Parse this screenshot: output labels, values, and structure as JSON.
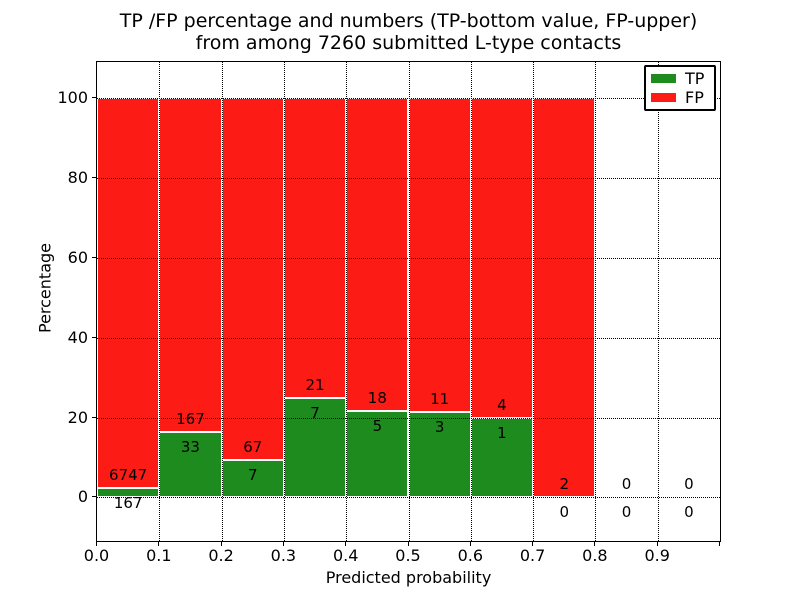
{
  "chart_data": {
    "type": "bar",
    "stacked": true,
    "title_line1": "TP /FP percentage and numbers (TP-bottom value, FP-upper)",
    "title_line2": "from among 7260 submitted L-type contacts",
    "xlabel": "Predicted probability",
    "ylabel": "Percentage",
    "total_contacts": 7260,
    "xlim": [
      0.0,
      1.0
    ],
    "ylim": [
      -10.9,
      109.1
    ],
    "grid": "dotted",
    "x_tick_labels": [
      "0.0",
      "0.1",
      "0.2",
      "0.3",
      "0.4",
      "0.5",
      "0.6",
      "0.7",
      "0.8",
      "0.9"
    ],
    "y_tick_values": [
      0,
      20,
      40,
      60,
      80,
      100
    ],
    "bin_width": 0.1,
    "annotation_rule": "FP count printed above green bar top, TP count printed below green bar top",
    "legend": {
      "position": "upper right",
      "entries": [
        {
          "name": "TP",
          "color": "#1e8b1e"
        },
        {
          "name": "FP",
          "color": "#fd1b15"
        }
      ]
    },
    "bins": [
      {
        "x_start": 0.0,
        "x_end": 0.1,
        "tp": 167,
        "fp": 6747,
        "tp_pct": 2.42,
        "fp_pct": 97.58
      },
      {
        "x_start": 0.1,
        "x_end": 0.2,
        "tp": 33,
        "fp": 167,
        "tp_pct": 16.5,
        "fp_pct": 83.5
      },
      {
        "x_start": 0.2,
        "x_end": 0.3,
        "tp": 7,
        "fp": 67,
        "tp_pct": 9.46,
        "fp_pct": 90.54
      },
      {
        "x_start": 0.3,
        "x_end": 0.4,
        "tp": 7,
        "fp": 21,
        "tp_pct": 25.0,
        "fp_pct": 75.0
      },
      {
        "x_start": 0.4,
        "x_end": 0.5,
        "tp": 5,
        "fp": 18,
        "tp_pct": 21.74,
        "fp_pct": 78.26
      },
      {
        "x_start": 0.5,
        "x_end": 0.6,
        "tp": 3,
        "fp": 11,
        "tp_pct": 21.43,
        "fp_pct": 78.57
      },
      {
        "x_start": 0.6,
        "x_end": 0.7,
        "tp": 1,
        "fp": 4,
        "tp_pct": 20.0,
        "fp_pct": 80.0
      },
      {
        "x_start": 0.7,
        "x_end": 0.8,
        "tp": 0,
        "fp": 2,
        "tp_pct": 0.0,
        "fp_pct": 100.0
      },
      {
        "x_start": 0.8,
        "x_end": 0.9,
        "tp": 0,
        "fp": 0,
        "tp_pct": null,
        "fp_pct": null
      },
      {
        "x_start": 0.9,
        "x_end": 1.0,
        "tp": 0,
        "fp": 0,
        "tp_pct": null,
        "fp_pct": null
      }
    ]
  }
}
